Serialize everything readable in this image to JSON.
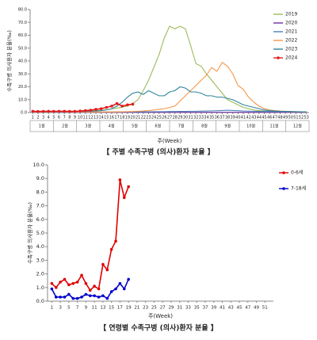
{
  "chart_data": [
    {
      "type": "line",
      "x_label": "주(Week)",
      "y_label": "수족구병 의사환자 분율(‰)",
      "caption": "【 주별 수족구병 (의사)환자 분율 】",
      "x": [
        1,
        2,
        3,
        4,
        5,
        6,
        7,
        8,
        9,
        10,
        11,
        12,
        13,
        14,
        15,
        16,
        17,
        18,
        19,
        20,
        21,
        22,
        23,
        24,
        25,
        26,
        27,
        28,
        29,
        30,
        31,
        32,
        33,
        34,
        35,
        36,
        37,
        38,
        39,
        40,
        41,
        42,
        43,
        44,
        45,
        46,
        47,
        48,
        49,
        50,
        51,
        52,
        53
      ],
      "xlim": [
        0.5,
        53.5
      ],
      "xticks": [
        1,
        2,
        3,
        4,
        5,
        6,
        7,
        8,
        9,
        10,
        11,
        12,
        13,
        14,
        15,
        16,
        17,
        18,
        19,
        20,
        21,
        22,
        23,
        24,
        25,
        26,
        27,
        28,
        29,
        30,
        31,
        32,
        33,
        34,
        35,
        36,
        37,
        38,
        39,
        40,
        41,
        42,
        43,
        44,
        45,
        46,
        47,
        48,
        49,
        50,
        51,
        52,
        53
      ],
      "months": [
        "1월",
        "2월",
        "3월",
        "4월",
        "5월",
        "6월",
        "7월",
        "8월",
        "9월",
        "10월",
        "11월",
        "12월"
      ],
      "ylim": [
        0,
        80
      ],
      "yticks": [
        {
          "value": 0,
          "label": "0.0"
        },
        {
          "value": 10,
          "label": "10.0"
        },
        {
          "value": 20,
          "label": "20.0"
        },
        {
          "value": 30,
          "label": "30.0"
        },
        {
          "value": 40,
          "label": "40.0"
        },
        {
          "value": 50,
          "label": "50.0"
        },
        {
          "value": 60,
          "label": "60.0"
        },
        {
          "value": 70,
          "label": "70.0"
        },
        {
          "value": 80,
          "label": "80.0"
        }
      ],
      "series": [
        {
          "name": "2019",
          "color": "#9bbb59",
          "values": [
            0.8,
            0.7,
            0.7,
            0.6,
            0.6,
            0.7,
            0.8,
            0.8,
            0.9,
            1.0,
            1.1,
            1.3,
            1.5,
            1.8,
            2.2,
            2.8,
            3.5,
            4.2,
            5,
            7,
            10,
            17,
            25,
            35,
            45,
            58,
            67,
            65,
            67,
            65,
            52,
            38,
            36,
            30,
            25,
            20,
            15,
            10,
            8,
            6,
            4,
            3,
            2,
            1.5,
            1.2,
            1,
            0.9,
            0.8,
            0.7,
            0.6,
            0.6,
            0.5,
            0.5
          ]
        },
        {
          "name": "2020",
          "color": "#7030a0",
          "values": [
            0.9,
            0.8,
            0.6,
            0.4,
            0.3,
            0.2,
            0.2,
            0.2,
            0.2,
            0.2,
            0.2,
            0.2,
            0.2,
            0.2,
            0.2,
            0.2,
            0.2,
            0.2,
            0.2,
            0.2,
            0.2,
            0.2,
            0.2,
            0.2,
            0.2,
            0.2,
            0.2,
            0.2,
            0.2,
            0.2,
            0.2,
            0.2,
            0.2,
            0.2,
            0.2,
            0.2,
            0.2,
            0.2,
            0.2,
            0.2,
            0.2,
            0.2,
            0.2,
            0.2,
            0.2,
            0.2,
            0.2,
            0.2,
            0.2,
            0.2,
            0.2,
            0.2,
            0.2
          ]
        },
        {
          "name": "2021",
          "color": "#4f81bd",
          "values": [
            0.3,
            0.3,
            0.3,
            0.3,
            0.3,
            0.3,
            0.3,
            0.3,
            0.3,
            0.3,
            0.3,
            0.3,
            0.4,
            0.4,
            0.4,
            0.4,
            0.5,
            0.5,
            0.5,
            0.5,
            0.6,
            0.6,
            0.6,
            0.7,
            0.7,
            0.7,
            0.8,
            0.8,
            0.9,
            0.9,
            1.0,
            1.0,
            1.1,
            1.2,
            1.3,
            1.4,
            1.6,
            1.8,
            1.6,
            1.4,
            1.2,
            1.1,
            1.0,
            0.9,
            0.8,
            0.8,
            0.7,
            0.7,
            0.6,
            0.6,
            0.5,
            0.5,
            0.5
          ]
        },
        {
          "name": "2022",
          "color": "#f79646",
          "values": [
            0.4,
            0.4,
            0.4,
            0.4,
            0.4,
            0.4,
            0.4,
            0.4,
            0.4,
            0.4,
            0.4,
            0.4,
            0.4,
            0.4,
            0.5,
            0.5,
            0.5,
            0.6,
            0.7,
            0.8,
            1,
            1.2,
            1.5,
            2,
            2.5,
            3,
            4,
            5,
            9,
            13,
            17,
            21,
            25,
            29,
            35,
            32,
            39,
            36,
            30,
            21,
            18,
            12,
            8,
            5,
            3,
            2,
            1.5,
            1.2,
            1,
            0.8,
            0.7,
            0.6,
            0.5
          ]
        },
        {
          "name": "2023",
          "color": "#31859c",
          "values": [
            0.6,
            0.6,
            0.6,
            0.6,
            0.6,
            0.6,
            0.6,
            0.7,
            0.7,
            0.8,
            0.9,
            1,
            1.2,
            1.5,
            2,
            3,
            5,
            8,
            12,
            15,
            16,
            14,
            17,
            15,
            13,
            13,
            16,
            17,
            20,
            19,
            16,
            16,
            15,
            13,
            13,
            12,
            12,
            11,
            10,
            8,
            6,
            5,
            4,
            3,
            2,
            1.5,
            1.2,
            1,
            0.9,
            0.8,
            0.7,
            0.6,
            0.6
          ]
        },
        {
          "name": "2024",
          "color": "#e31a1c",
          "markers": true,
          "values": [
            1.0,
            0.8,
            0.9,
            1.0,
            0.9,
            1.0,
            1.0,
            0.9,
            0.9,
            1.2,
            1.5,
            1.8,
            2.5,
            3.0,
            4.0,
            5.0,
            7.0,
            5.0,
            6.0,
            6.5,
            null,
            null,
            null,
            null,
            null,
            null,
            null,
            null,
            null,
            null,
            null,
            null,
            null,
            null,
            null,
            null,
            null,
            null,
            null,
            null,
            null,
            null,
            null,
            null,
            null,
            null,
            null,
            null,
            null,
            null,
            null,
            null,
            null
          ]
        }
      ]
    },
    {
      "type": "line",
      "x_label": "주(Week)",
      "y_label": "수족구병 의사환자 분율(‰)",
      "caption": "【 연령별 수족구병 (의사)환자 분율 】",
      "x": [
        1,
        2,
        3,
        4,
        5,
        6,
        7,
        8,
        9,
        10,
        11,
        12,
        13,
        14,
        15,
        16,
        17,
        18,
        19
      ],
      "xlim": [
        0,
        53
      ],
      "xticks": [
        1,
        3,
        5,
        7,
        9,
        11,
        13,
        15,
        17,
        19,
        21,
        23,
        25,
        27,
        29,
        31,
        33,
        35,
        37,
        39,
        41,
        43,
        45,
        47,
        49,
        51
      ],
      "ylim": [
        0,
        10
      ],
      "yticks": [
        {
          "value": 0,
          "label": "0.0"
        },
        {
          "value": 1,
          "label": "1.0"
        },
        {
          "value": 2,
          "label": "2.0"
        },
        {
          "value": 3,
          "label": "3.0"
        },
        {
          "value": 4,
          "label": "4.0"
        },
        {
          "value": 5,
          "label": "5.0"
        },
        {
          "value": 6,
          "label": "6.0"
        },
        {
          "value": 7,
          "label": "7.0"
        },
        {
          "value": 8,
          "label": "8.0"
        },
        {
          "value": 9,
          "label": "9.0"
        },
        {
          "value": 10,
          "label": "10.0"
        }
      ],
      "series": [
        {
          "name": "0-6세",
          "color": "#e00000",
          "markers": true,
          "values": [
            1.3,
            1.0,
            1.4,
            1.6,
            1.2,
            1.3,
            1.4,
            1.9,
            1.3,
            0.8,
            1.1,
            0.9,
            2.7,
            2.3,
            3.8,
            4.4,
            8.9,
            7.6,
            8.4
          ]
        },
        {
          "name": "7-18세",
          "color": "#0000cc",
          "markers": true,
          "values": [
            0.9,
            0.3,
            0.3,
            0.3,
            0.5,
            0.2,
            0.2,
            0.3,
            0.5,
            0.4,
            0.4,
            0.3,
            0.4,
            0.2,
            0.7,
            0.9,
            1.3,
            0.9,
            1.6
          ]
        }
      ]
    }
  ]
}
